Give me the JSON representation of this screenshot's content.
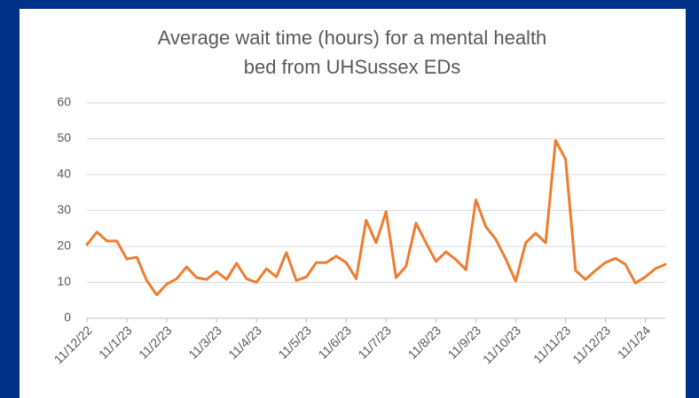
{
  "chart_data": {
    "type": "line",
    "title": [
      "Average wait time (hours) for a mental health",
      "bed from UHSussex EDs"
    ],
    "categories": [
      "11/12/22",
      null,
      null,
      null,
      "11/1/23",
      null,
      null,
      null,
      "11/2/23",
      null,
      null,
      null,
      null,
      "11/3/23",
      null,
      null,
      null,
      "11/4/23",
      null,
      null,
      null,
      null,
      "11/5/23",
      null,
      null,
      null,
      "11/6/23",
      null,
      null,
      null,
      "11/7/23",
      null,
      null,
      null,
      null,
      "11/8/23",
      null,
      null,
      null,
      "11/9/23",
      null,
      null,
      null,
      "11/10/23",
      null,
      null,
      null,
      null,
      "11/11/23",
      null,
      null,
      null,
      "11/12/23",
      null,
      null,
      null,
      "11/1/24",
      null,
      null
    ],
    "series": [
      {
        "name": "Average wait time",
        "color": "#ed7d31",
        "values": [
          20.5,
          24,
          21.5,
          21.5,
          16.5,
          17,
          10.5,
          6.5,
          9.5,
          11,
          14.3,
          11.3,
          10.8,
          13,
          10.8,
          15.3,
          11,
          10,
          13.8,
          11.5,
          18.3,
          10.5,
          11.5,
          15.5,
          15.5,
          17.3,
          15.5,
          11,
          27.3,
          21,
          29.7,
          11.3,
          14.5,
          26.5,
          21,
          15.8,
          18.5,
          16.3,
          13.5,
          33,
          25.5,
          22,
          16.5,
          10.3,
          21,
          23.7,
          21,
          49.5,
          44.3,
          13.3,
          10.8,
          13.3,
          15.5,
          16.7,
          15,
          9.8,
          11.5,
          13.8,
          15
        ]
      }
    ],
    "ylim": [
      0,
      60
    ],
    "yticks": [
      0,
      10,
      20,
      30,
      40,
      50,
      60
    ],
    "grid": true
  }
}
